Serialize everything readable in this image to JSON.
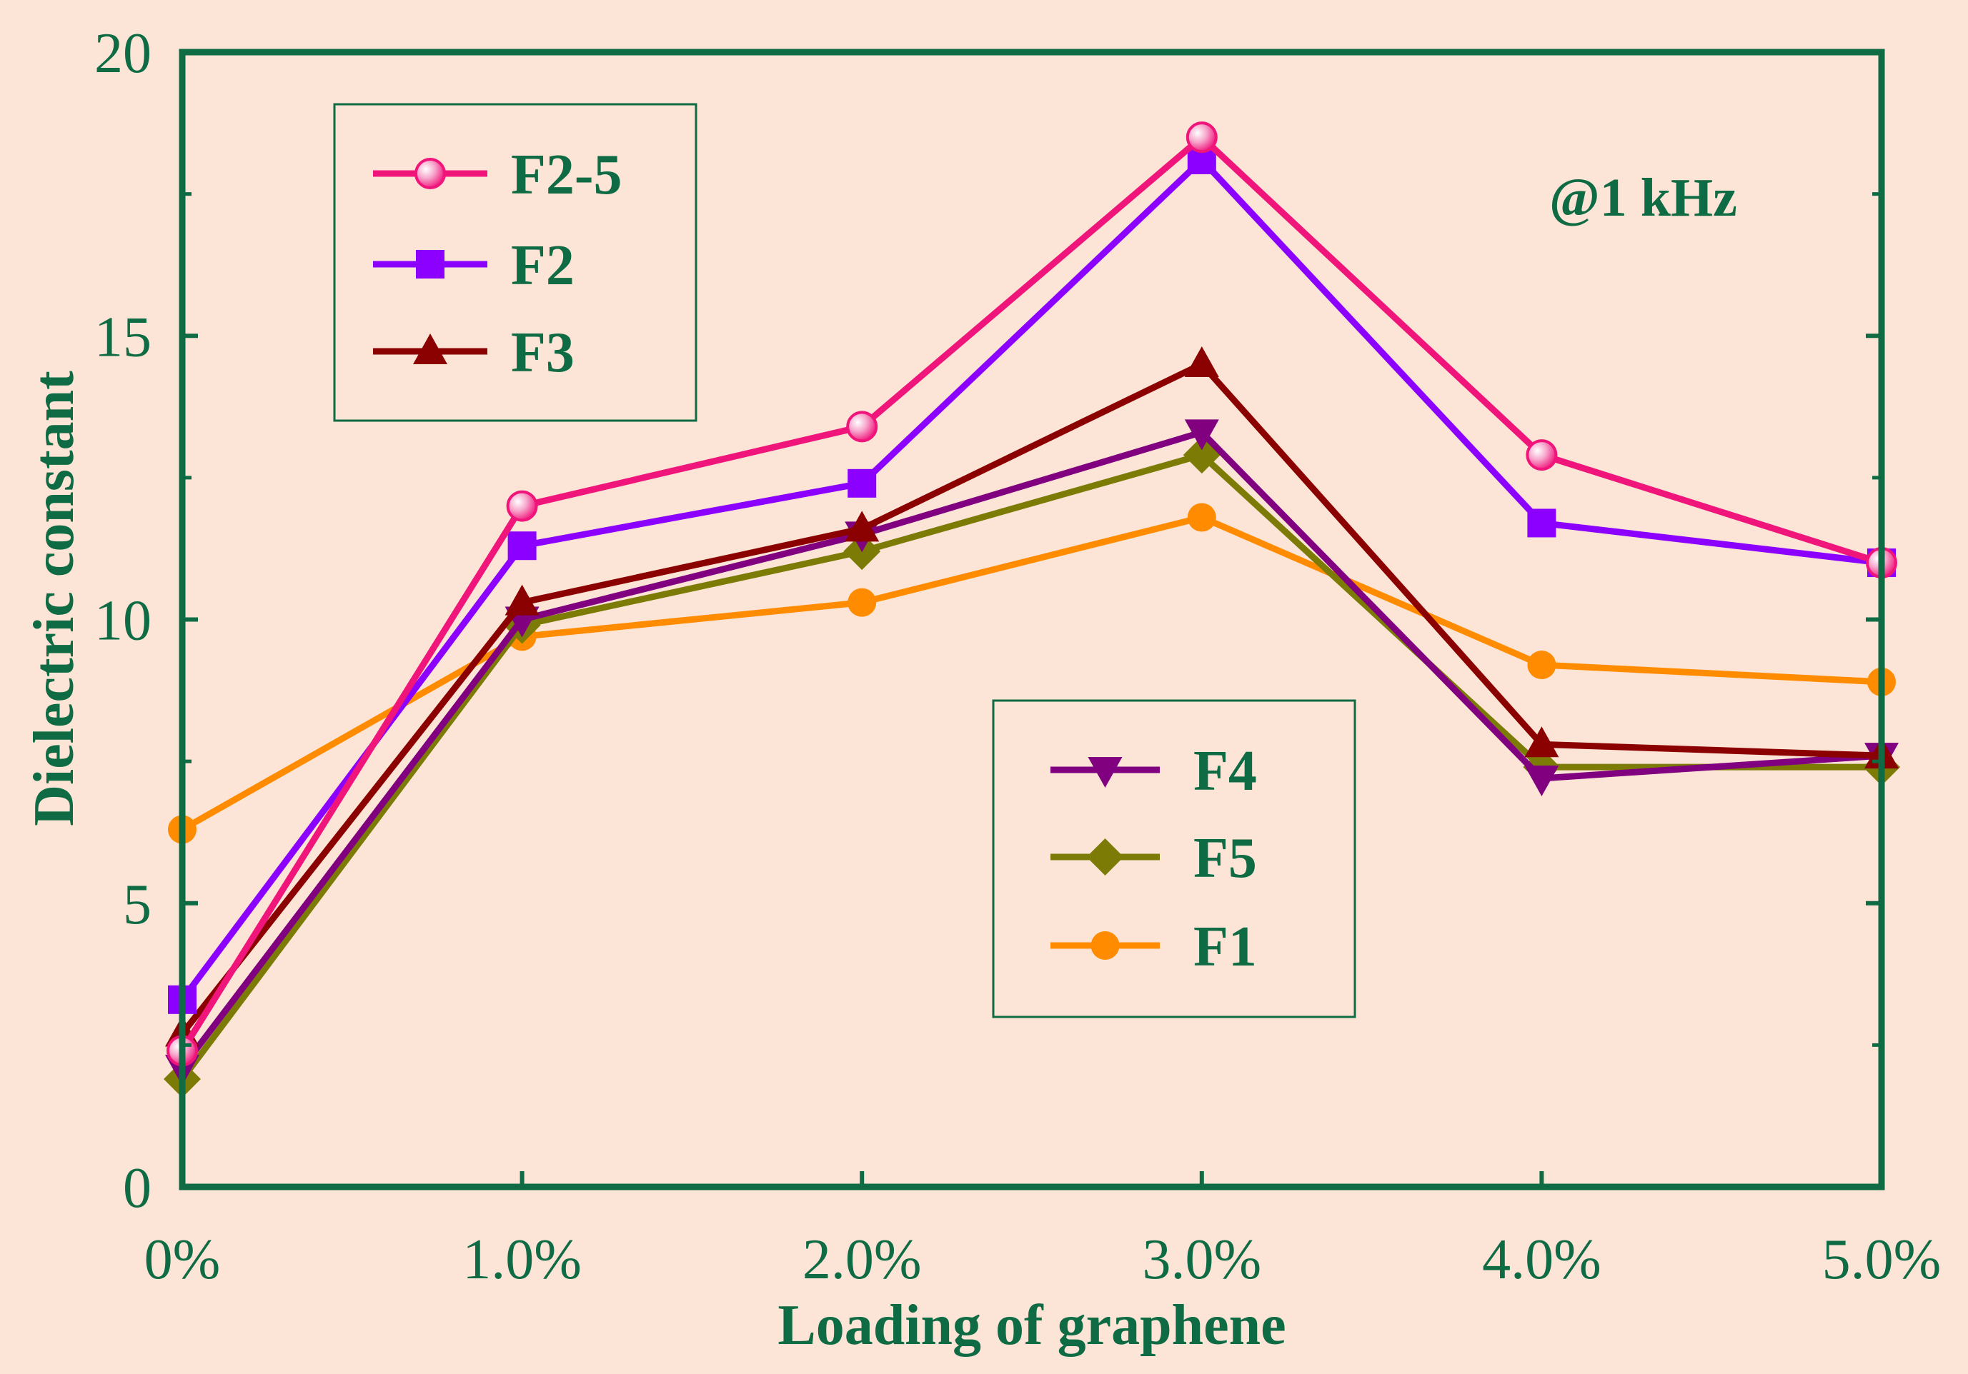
{
  "chart_data": {
    "type": "line",
    "title": "",
    "xlabel": "Loading of graphene",
    "ylabel": "Dielectric constant",
    "annotation": "@1 kHz",
    "categories": [
      "0%",
      "1.0%",
      "2.0%",
      "3.0%",
      "4.0%",
      "5.0%"
    ],
    "ylim": [
      0,
      20
    ],
    "yticks": [
      0,
      5,
      10,
      15,
      20
    ],
    "yticklabels": [
      "0",
      "5",
      "10",
      "15",
      "20"
    ],
    "grid": false,
    "series": [
      {
        "name": "F2-5",
        "color": "#f0157b",
        "marker": "circle-shaded",
        "values": [
          2.4,
          12.0,
          13.4,
          18.5,
          12.9,
          11.0
        ]
      },
      {
        "name": "F2",
        "color": "#8b00ff",
        "marker": "square",
        "values": [
          3.3,
          11.3,
          12.4,
          18.1,
          11.7,
          11.0
        ]
      },
      {
        "name": "F3",
        "color": "#8b0000",
        "marker": "triangle-up",
        "values": [
          2.7,
          10.3,
          11.6,
          14.5,
          7.8,
          7.6
        ]
      },
      {
        "name": "F4",
        "color": "#800080",
        "marker": "triangle-down",
        "values": [
          2.1,
          10.0,
          11.5,
          13.3,
          7.2,
          7.6
        ]
      },
      {
        "name": "F5",
        "color": "#7b7b05",
        "marker": "diamond",
        "values": [
          1.9,
          9.9,
          11.2,
          12.9,
          7.4,
          7.4
        ]
      },
      {
        "name": "F1",
        "color": "#ff8c00",
        "marker": "circle",
        "values": [
          6.3,
          9.7,
          10.3,
          11.8,
          9.2,
          8.9
        ]
      }
    ],
    "legends": [
      {
        "placement": "top-left",
        "entries": [
          "F2-5",
          "F2",
          "F3"
        ]
      },
      {
        "placement": "middle-right",
        "entries": [
          "F4",
          "F5",
          "F1"
        ]
      }
    ]
  }
}
